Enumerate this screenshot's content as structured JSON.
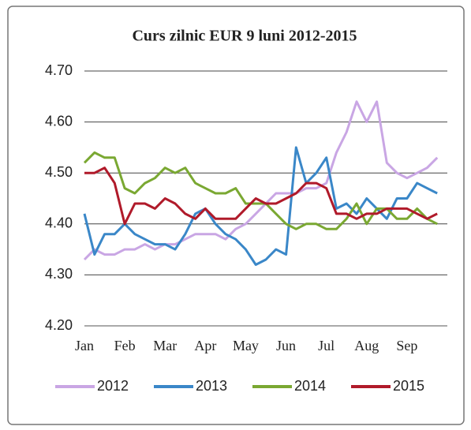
{
  "chart_data": {
    "type": "line",
    "title": "Curs zilnic EUR  9 luni 2012-2015",
    "categories": [
      "Jan",
      null,
      null,
      null,
      "Feb",
      null,
      null,
      null,
      "Mar",
      null,
      null,
      null,
      "Apr",
      null,
      null,
      null,
      "May",
      null,
      null,
      null,
      "Jun",
      null,
      null,
      null,
      "Jul",
      null,
      null,
      null,
      "Aug",
      null,
      null,
      null,
      "Sep",
      null,
      null,
      null
    ],
    "series": [
      {
        "name": "2012",
        "color": "#c9a6e4",
        "values": [
          4.33,
          4.35,
          4.34,
          4.34,
          4.35,
          4.35,
          4.36,
          4.35,
          4.36,
          4.36,
          4.37,
          4.38,
          4.38,
          4.38,
          4.37,
          4.39,
          4.4,
          4.42,
          4.44,
          4.46,
          4.46,
          4.46,
          4.47,
          4.47,
          4.48,
          4.54,
          4.58,
          4.64,
          4.6,
          4.64,
          4.52,
          4.5,
          4.49,
          4.5,
          4.51,
          4.53
        ]
      },
      {
        "name": "2013",
        "color": "#3a87c8",
        "values": [
          4.42,
          4.34,
          4.38,
          4.38,
          4.4,
          4.38,
          4.37,
          4.36,
          4.36,
          4.35,
          4.38,
          4.42,
          4.43,
          4.4,
          4.38,
          4.37,
          4.35,
          4.32,
          4.33,
          4.35,
          4.34,
          4.55,
          4.48,
          4.5,
          4.53,
          4.43,
          4.44,
          4.42,
          4.45,
          4.43,
          4.41,
          4.45,
          4.45,
          4.48,
          4.47,
          4.46
        ]
      },
      {
        "name": "2014",
        "color": "#7aa832",
        "values": [
          4.52,
          4.54,
          4.53,
          4.53,
          4.47,
          4.46,
          4.48,
          4.49,
          4.51,
          4.5,
          4.51,
          4.48,
          4.47,
          4.46,
          4.46,
          4.47,
          4.44,
          4.44,
          4.44,
          4.42,
          4.4,
          4.39,
          4.4,
          4.4,
          4.39,
          4.39,
          4.41,
          4.44,
          4.4,
          4.43,
          4.43,
          4.41,
          4.41,
          4.43,
          4.41,
          4.4
        ]
      },
      {
        "name": "2015",
        "color": "#b01a2a",
        "values": [
          4.5,
          4.5,
          4.51,
          4.48,
          4.4,
          4.44,
          4.44,
          4.43,
          4.45,
          4.44,
          4.42,
          4.41,
          4.43,
          4.41,
          4.41,
          4.41,
          4.43,
          4.45,
          4.44,
          4.44,
          4.45,
          4.46,
          4.48,
          4.48,
          4.47,
          4.42,
          4.42,
          4.41,
          4.42,
          4.42,
          4.43,
          4.43,
          4.43,
          4.42,
          4.41,
          4.42
        ]
      }
    ],
    "ylim": [
      4.2,
      4.7
    ],
    "yticks": [
      {
        "value": 4.2,
        "label": "4.20"
      },
      {
        "value": 4.3,
        "label": "4.30"
      },
      {
        "value": 4.4,
        "label": "4.40"
      },
      {
        "value": 4.5,
        "label": "4.50"
      },
      {
        "value": 4.6,
        "label": "4.60"
      },
      {
        "value": 4.7,
        "label": "4.70"
      }
    ],
    "grid": true,
    "legend": "bottom"
  }
}
